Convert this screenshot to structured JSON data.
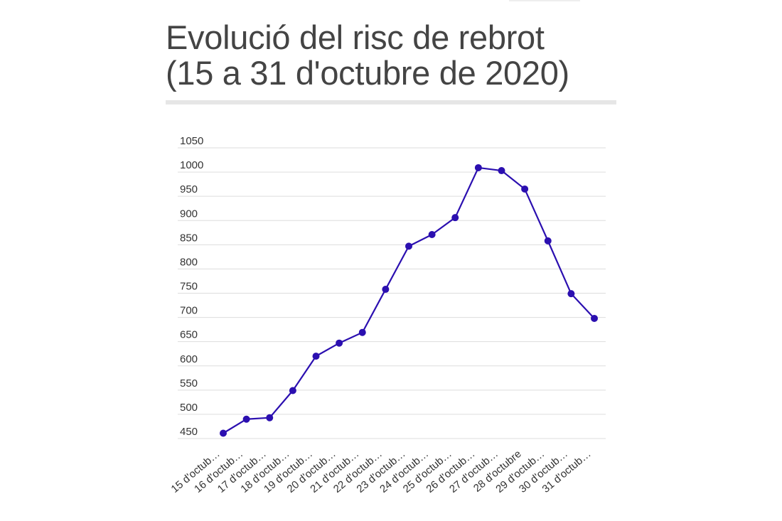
{
  "chart_data": {
    "type": "line",
    "title_line1": "Evolució del risc de rebrot",
    "title_line2": "(15 a 31 d'octubre de 2020)",
    "categories": [
      "15 d'octub…",
      "16 d'octub…",
      "17 d'octub…",
      "18 d'octub…",
      "19 d'octub…",
      "20 d'octub…",
      "21 d'octub…",
      "22 d'octub…",
      "23 d'octub…",
      "24 d'octub…",
      "25 d'octub…",
      "26 d'octub…",
      "27 d'octub…",
      "28 d'octubre",
      "29 d'octub…",
      "30 d'octub…",
      "31 d'octub…"
    ],
    "values": [
      461,
      490,
      493,
      549,
      620,
      647,
      669,
      758,
      847,
      871,
      906,
      1009,
      1003,
      965,
      858,
      749,
      698
    ],
    "yticks": [
      450,
      500,
      550,
      600,
      650,
      700,
      750,
      800,
      850,
      900,
      950,
      1000,
      1050
    ],
    "ylim": [
      440,
      1050
    ],
    "grid": true,
    "legend": "none",
    "color": "#2b0fb0",
    "xlabel": "",
    "ylabel": ""
  }
}
